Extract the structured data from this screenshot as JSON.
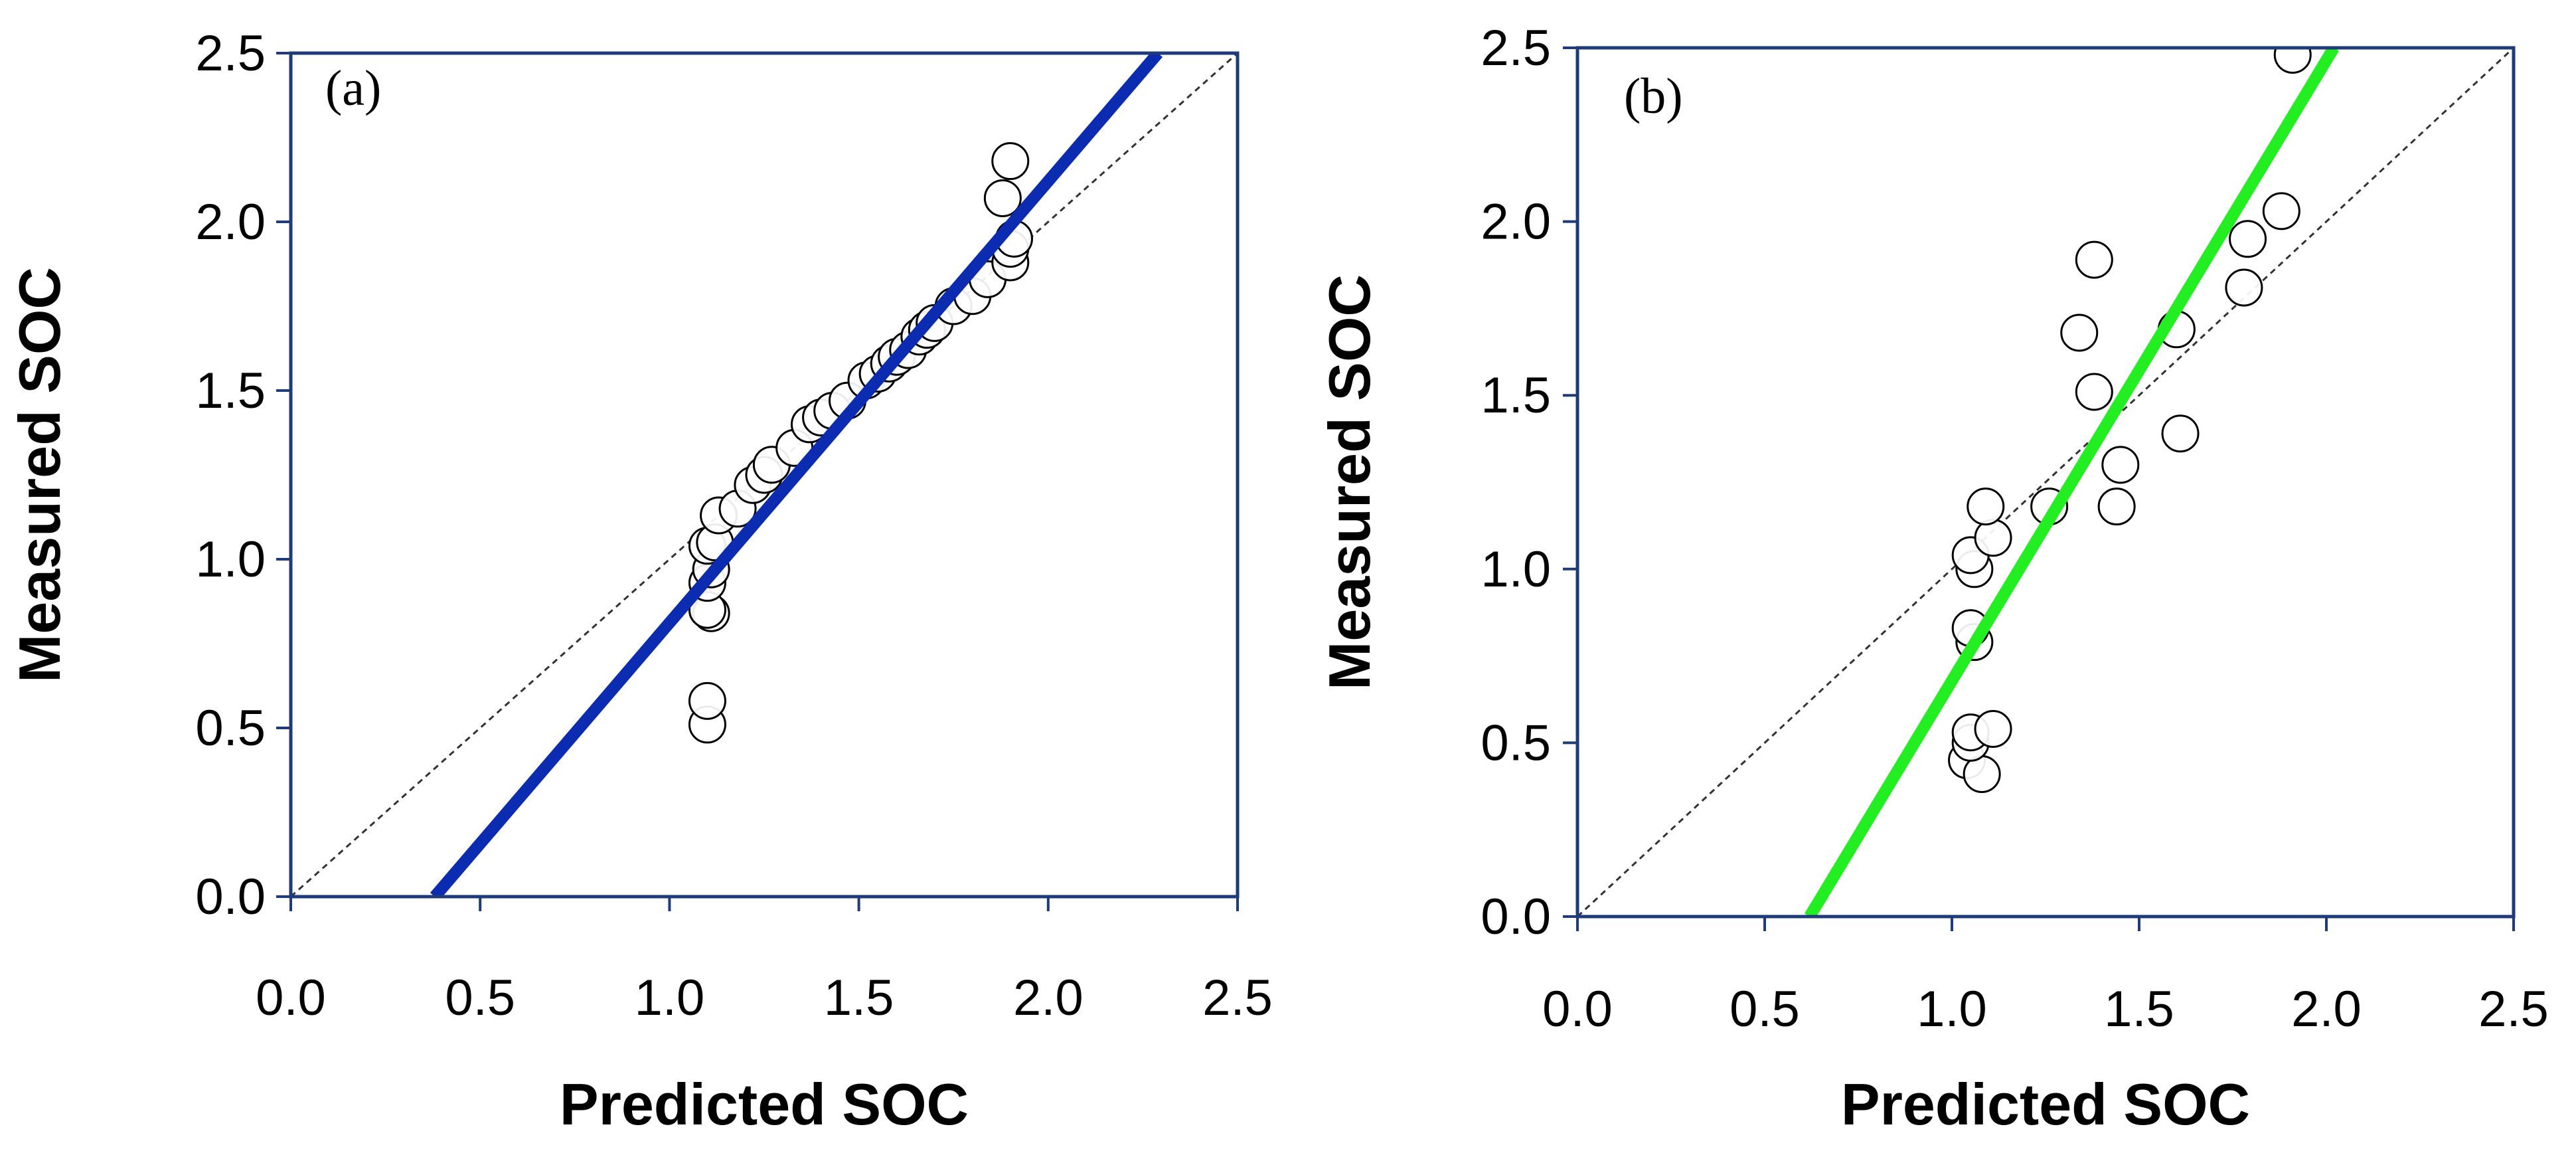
{
  "chart_data": [
    {
      "type": "scatter",
      "panel_label": "(a)",
      "xlabel": "Predicted SOC",
      "ylabel": "Measured SOC",
      "xlim": [
        0,
        2.5
      ],
      "ylim": [
        0,
        2.5
      ],
      "xticks": [
        "0.0",
        "0.5",
        "1.0",
        "1.5",
        "2.0",
        "2.5"
      ],
      "yticks": [
        "0.0",
        "0.5",
        "1.0",
        "1.5",
        "2.0",
        "2.5"
      ],
      "frame_color": "#1f3b7a",
      "point_stroke": "#000000",
      "identity_line": {
        "style": "dashed",
        "color": "#333333"
      },
      "fit_line": {
        "color": "#0b2bb0",
        "x": [
          0.38,
          2.29
        ],
        "y": [
          0.0,
          2.5
        ]
      },
      "points": [
        [
          1.1,
          0.51
        ],
        [
          1.1,
          0.58
        ],
        [
          1.11,
          0.84
        ],
        [
          1.1,
          0.85
        ],
        [
          1.1,
          0.93
        ],
        [
          1.11,
          0.97
        ],
        [
          1.1,
          1.04
        ],
        [
          1.12,
          1.05
        ],
        [
          1.13,
          1.13
        ],
        [
          1.18,
          1.15
        ],
        [
          1.22,
          1.22
        ],
        [
          1.25,
          1.25
        ],
        [
          1.27,
          1.28
        ],
        [
          1.33,
          1.33
        ],
        [
          1.37,
          1.4
        ],
        [
          1.4,
          1.42
        ],
        [
          1.43,
          1.44
        ],
        [
          1.47,
          1.47
        ],
        [
          1.52,
          1.53
        ],
        [
          1.55,
          1.55
        ],
        [
          1.58,
          1.58
        ],
        [
          1.6,
          1.6
        ],
        [
          1.63,
          1.62
        ],
        [
          1.66,
          1.66
        ],
        [
          1.68,
          1.68
        ],
        [
          1.7,
          1.7
        ],
        [
          1.75,
          1.75
        ],
        [
          1.8,
          1.78
        ],
        [
          1.84,
          1.83
        ],
        [
          1.9,
          1.88
        ],
        [
          1.9,
          1.92
        ],
        [
          1.91,
          1.95
        ],
        [
          1.88,
          2.07
        ],
        [
          1.9,
          2.18
        ]
      ]
    },
    {
      "type": "scatter",
      "panel_label": "(b)",
      "xlabel": "Predicted SOC",
      "ylabel": "Measured SOC",
      "xlim": [
        0,
        2.5
      ],
      "ylim": [
        0,
        2.5
      ],
      "xticks": [
        "0.0",
        "0.5",
        "1.0",
        "1.5",
        "2.0",
        "2.5"
      ],
      "yticks": [
        "0.0",
        "0.5",
        "1.0",
        "1.5",
        "2.0",
        "2.5"
      ],
      "frame_color": "#1f3b7a",
      "point_stroke": "#000000",
      "identity_line": {
        "style": "dashed",
        "color": "#333333"
      },
      "fit_line": {
        "color": "#22ee22",
        "x": [
          0.62,
          2.02
        ],
        "y": [
          0.0,
          2.5
        ]
      },
      "points": [
        [
          1.04,
          0.45
        ],
        [
          1.08,
          0.41
        ],
        [
          1.05,
          0.5
        ],
        [
          1.05,
          0.53
        ],
        [
          1.11,
          0.54
        ],
        [
          1.06,
          0.79
        ],
        [
          1.05,
          0.83
        ],
        [
          1.06,
          1.0
        ],
        [
          1.05,
          1.04
        ],
        [
          1.11,
          1.09
        ],
        [
          1.09,
          1.18
        ],
        [
          1.26,
          1.18
        ],
        [
          1.44,
          1.18
        ],
        [
          1.45,
          1.3
        ],
        [
          1.38,
          1.51
        ],
        [
          1.34,
          1.68
        ],
        [
          1.38,
          1.89
        ],
        [
          1.61,
          1.39
        ],
        [
          1.6,
          1.69
        ],
        [
          1.78,
          1.81
        ],
        [
          1.79,
          1.95
        ],
        [
          1.88,
          2.03
        ],
        [
          1.91,
          2.48
        ]
      ]
    }
  ]
}
